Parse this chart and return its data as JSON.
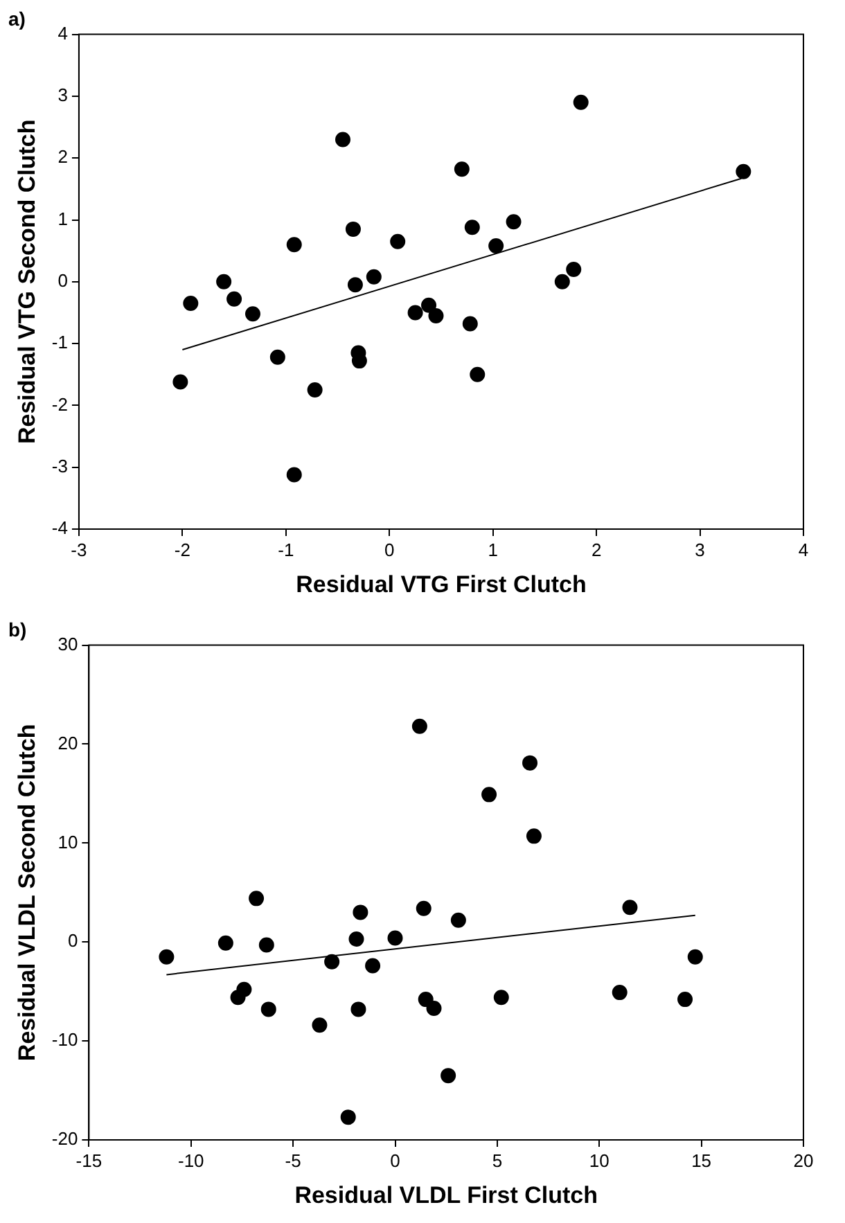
{
  "chart_data": [
    {
      "type": "scatter",
      "title": "a)",
      "xlabel": "Residual VTG First Clutch",
      "ylabel": "Residual VTG Second Clutch",
      "xlim": [
        -3,
        4
      ],
      "ylim": [
        -4,
        4
      ],
      "xticks": [
        -3,
        -2,
        -1,
        0,
        1,
        2,
        3,
        4
      ],
      "yticks": [
        -4,
        -3,
        -2,
        -1,
        0,
        1,
        2,
        3,
        4
      ],
      "series": [
        {
          "marker": "circle",
          "color": "#000000",
          "x": [
            -2.02,
            -1.92,
            -1.6,
            -1.5,
            -1.32,
            -1.08,
            -0.92,
            -0.92,
            -0.72,
            -0.45,
            -0.35,
            -0.33,
            -0.3,
            -0.29,
            -0.15,
            0.08,
            0.25,
            0.38,
            0.45,
            0.7,
            0.78,
            0.8,
            0.85,
            1.03,
            1.2,
            1.67,
            1.78,
            1.85,
            3.42
          ],
          "values": [
            -1.62,
            -0.35,
            0.0,
            -0.28,
            -0.52,
            -1.22,
            0.6,
            -3.12,
            -1.75,
            2.3,
            0.85,
            -0.05,
            -1.15,
            -1.28,
            0.08,
            0.65,
            -0.5,
            -0.38,
            -0.55,
            1.82,
            -0.68,
            0.88,
            -1.5,
            0.58,
            0.97,
            0.0,
            0.2,
            2.9,
            1.78
          ]
        },
        {
          "type": "line",
          "color": "#000000",
          "x": [
            -2.0,
            3.4
          ],
          "values": [
            -1.1,
            1.67
          ]
        }
      ]
    },
    {
      "type": "scatter",
      "title": "b)",
      "xlabel": "Residual VLDL First Clutch",
      "ylabel": "Residual VLDL Second Clutch",
      "xlim": [
        -15,
        20
      ],
      "ylim": [
        -20,
        30
      ],
      "xticks": [
        -15,
        -10,
        -5,
        0,
        5,
        10,
        15,
        20
      ],
      "yticks": [
        -20,
        -10,
        0,
        10,
        20,
        30
      ],
      "series": [
        {
          "marker": "circle",
          "color": "#000000",
          "x": [
            -11.2,
            -8.3,
            -7.7,
            -7.4,
            -6.8,
            -6.3,
            -6.2,
            -3.7,
            -3.1,
            -1.9,
            -1.7,
            -1.8,
            -1.1,
            0,
            1.2,
            1.4,
            1.5,
            1.9,
            2.6,
            3.1,
            4.6,
            5.2,
            6.6,
            6.8,
            11,
            11.5,
            14.2,
            14.7,
            -2.3
          ],
          "values": [
            -1.5,
            -0.1,
            -5.6,
            -4.8,
            4.4,
            -0.3,
            -6.8,
            -8.4,
            -2,
            0.3,
            3,
            -6.8,
            -2.4,
            0.4,
            21.8,
            3.4,
            -5.8,
            -6.7,
            -13.5,
            2.2,
            14.9,
            -5.6,
            18.1,
            10.7,
            -5.1,
            3.5,
            -5.8,
            -1.5,
            -17.7
          ]
        },
        {
          "type": "line",
          "color": "#000000",
          "x": [
            -11.2,
            14.7
          ],
          "values": [
            -3.3,
            2.7
          ]
        }
      ]
    }
  ]
}
